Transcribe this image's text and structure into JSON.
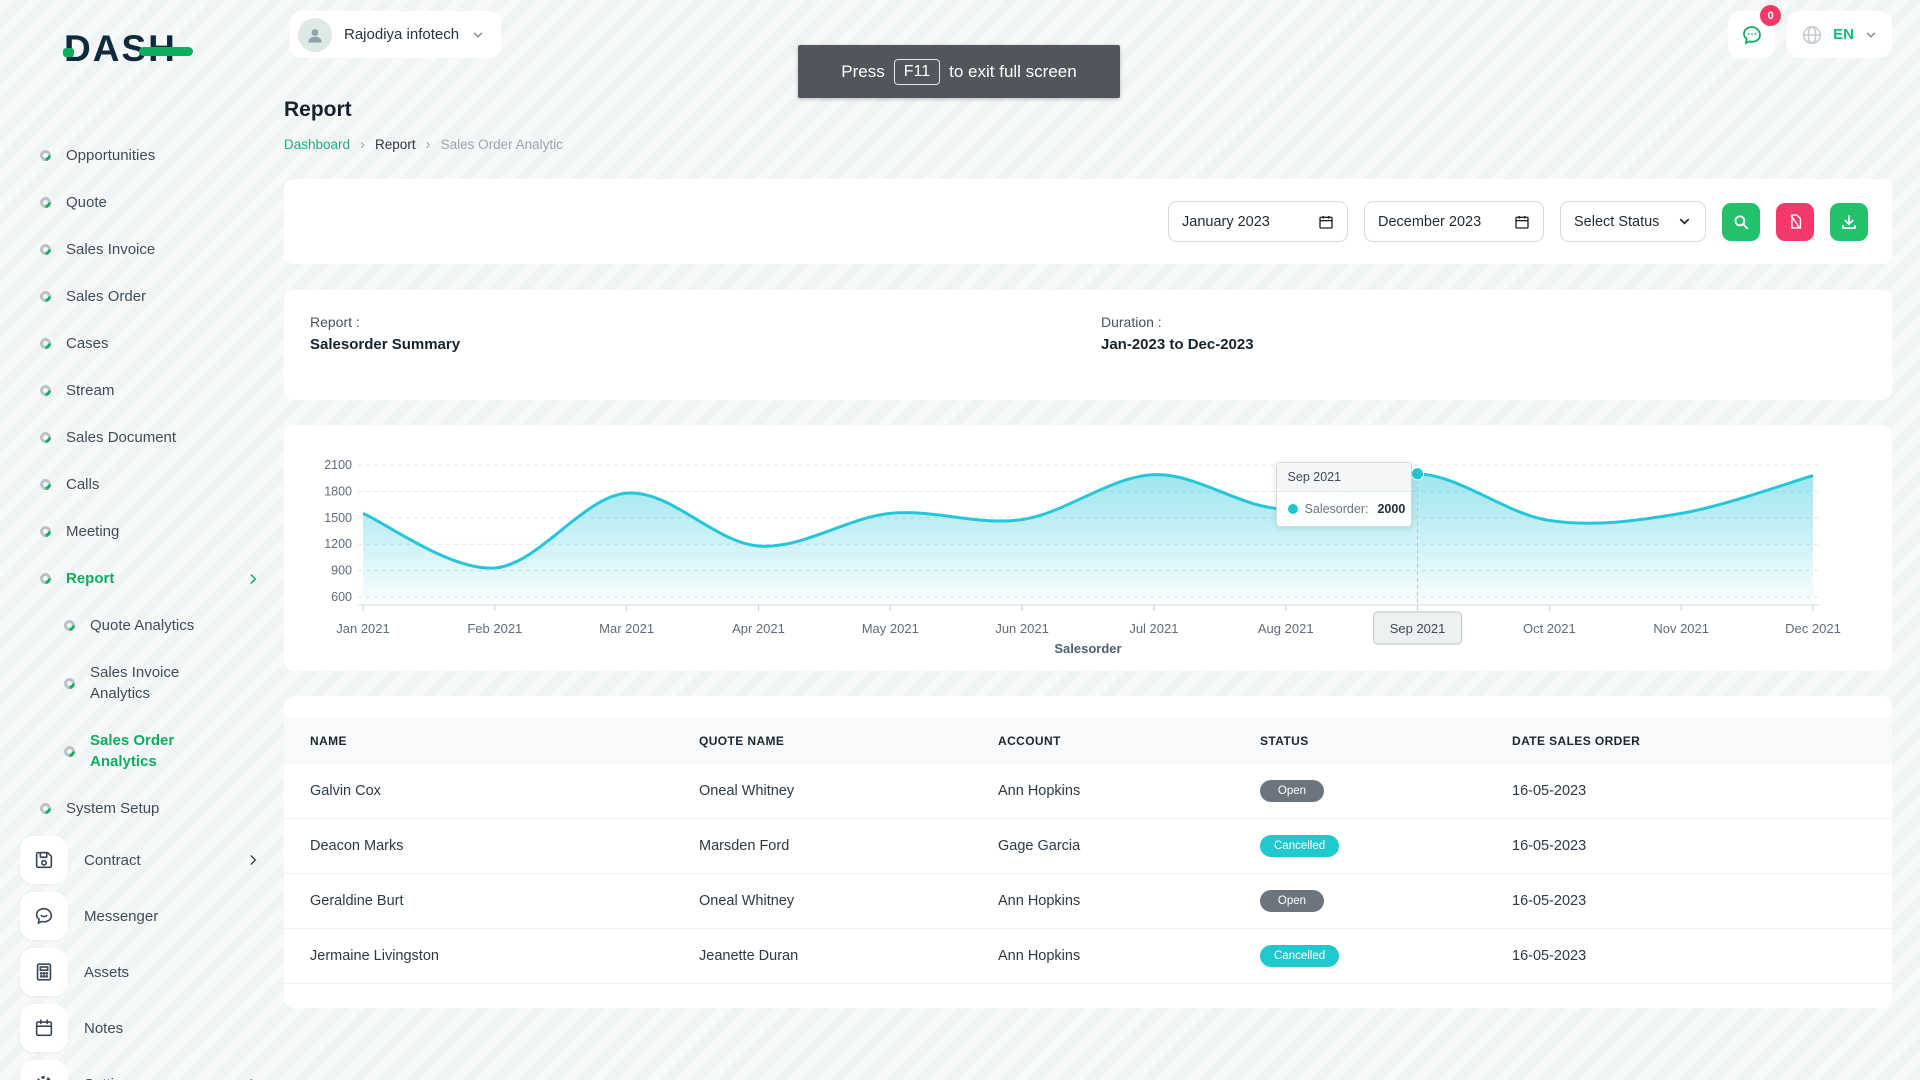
{
  "brand": {
    "name": "DASH"
  },
  "topbar": {
    "company": "Rajodiya infotech",
    "messages_badge": "0",
    "language": "EN"
  },
  "toast": {
    "prefix": "Press",
    "key": "F11",
    "suffix": "to exit full screen"
  },
  "page": {
    "title": "Report",
    "breadcrumb": [
      "Dashboard",
      "Report",
      "Sales Order Analytic"
    ]
  },
  "sidebar": {
    "items": [
      {
        "label": "Opportunities",
        "icon": "donut-icon",
        "kind": "plain"
      },
      {
        "label": "Quote",
        "icon": "donut-icon",
        "kind": "plain"
      },
      {
        "label": "Sales Invoice",
        "icon": "donut-icon",
        "kind": "plain"
      },
      {
        "label": "Sales Order",
        "icon": "donut-icon",
        "kind": "plain"
      },
      {
        "label": "Cases",
        "icon": "donut-icon",
        "kind": "plain"
      },
      {
        "label": "Stream",
        "icon": "donut-icon",
        "kind": "plain"
      },
      {
        "label": "Sales Document",
        "icon": "donut-icon",
        "kind": "plain"
      },
      {
        "label": "Calls",
        "icon": "donut-icon",
        "kind": "plain"
      },
      {
        "label": "Meeting",
        "icon": "donut-icon",
        "kind": "plain"
      },
      {
        "label": "Report",
        "icon": "donut-icon",
        "kind": "plain",
        "active": true,
        "chevron": true
      },
      {
        "label": "Quote Analytics",
        "icon": "donut-icon",
        "kind": "plain",
        "sub": true
      },
      {
        "label": "Sales Invoice Analytics",
        "icon": "donut-icon",
        "kind": "plain",
        "sub": true
      },
      {
        "label": "Sales Order Analytics",
        "icon": "donut-icon",
        "kind": "plain",
        "sub": true,
        "active": true
      },
      {
        "label": "System Setup",
        "icon": "donut-icon",
        "kind": "plain"
      },
      {
        "label": "Contract",
        "icon": "floppy-icon",
        "kind": "card",
        "chevron": true
      },
      {
        "label": "Messenger",
        "icon": "chat-bubble-icon",
        "kind": "card"
      },
      {
        "label": "Assets",
        "icon": "calculator-icon",
        "kind": "card"
      },
      {
        "label": "Notes",
        "icon": "calendar-icon",
        "kind": "card"
      },
      {
        "label": "Settings",
        "icon": "gear-icon",
        "kind": "card",
        "chevron": true
      }
    ]
  },
  "filters": {
    "start_date": "January 2023",
    "end_date": "December 2023",
    "status": "Select Status"
  },
  "summary": {
    "report_label": "Report :",
    "report_value": "Salesorder Summary",
    "duration_label": "Duration :",
    "duration_value": "Jan-2023 to Dec-2023"
  },
  "chart_data": {
    "type": "area",
    "title": "Salesorder",
    "x": [
      "Jan 2021",
      "Feb 2021",
      "Mar 2021",
      "Apr 2021",
      "May 2021",
      "Jun 2021",
      "Jul 2021",
      "Aug 2021",
      "Sep 2021",
      "Oct 2021",
      "Nov 2021",
      "Dec 2021"
    ],
    "series": [
      {
        "name": "Salesorder",
        "values": [
          1550,
          930,
          1780,
          1180,
          1550,
          1480,
          1990,
          1600,
          2000,
          1470,
          1550,
          1980
        ]
      }
    ],
    "ylim": [
      600,
      2100
    ],
    "yticks": [
      600,
      900,
      1200,
      1500,
      1800,
      2100
    ],
    "grid": "horizontal-dashed",
    "legend_position": "bottom",
    "tooltip": {
      "title": "Sep 2021",
      "series_label": "Salesorder:",
      "value": "2000",
      "index": 8
    }
  },
  "table": {
    "headers": [
      "NAME",
      "QUOTE NAME",
      "ACCOUNT",
      "STATUS",
      "DATE SALES ORDER"
    ],
    "rows": [
      {
        "name": "Galvin Cox",
        "quote_name": "Oneal Whitney",
        "account": "Ann Hopkins",
        "status": "Open",
        "date": "16-05-2023"
      },
      {
        "name": "Deacon Marks",
        "quote_name": "Marsden Ford",
        "account": "Gage Garcia",
        "status": "Cancelled",
        "date": "16-05-2023"
      },
      {
        "name": "Geraldine Burt",
        "quote_name": "Oneal Whitney",
        "account": "Ann Hopkins",
        "status": "Open",
        "date": "16-05-2023"
      },
      {
        "name": "Jermaine Livingston",
        "quote_name": "Jeanette Duran",
        "account": "Ann Hopkins",
        "status": "Cancelled",
        "date": "16-05-2023"
      }
    ]
  },
  "colors": {
    "accent": "#0caf60",
    "chart_line": "#26c6da",
    "chart_fill": "#26c6da",
    "badge_open": "#6c757d",
    "badge_cancelled": "#1fc9ce",
    "button_green": "#23c16b",
    "button_pink": "#f5386a",
    "logo_navy": "#0e2b3d"
  }
}
